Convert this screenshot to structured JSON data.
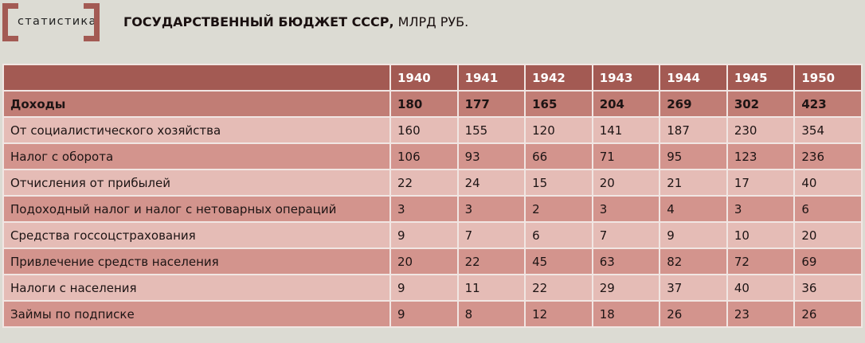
{
  "header": {
    "logo_text": "статистика",
    "title_bold": "ГОСУДАРСТВЕННЫЙ БЮДЖЕТ СССР,",
    "title_rest": " МЛРД РУБ.",
    "accent_color": "#a35a53"
  },
  "table": {
    "columns": [
      "",
      "1940",
      "1941",
      "1942",
      "1943",
      "1944",
      "1945",
      "1950"
    ],
    "rows": [
      {
        "label": "Доходы",
        "values": [
          "180",
          "177",
          "165",
          "204",
          "269",
          "302",
          "423"
        ],
        "bold": true
      },
      {
        "label": "От социалистического хозяйства",
        "values": [
          "160",
          "155",
          "120",
          "141",
          "187",
          "230",
          "354"
        ]
      },
      {
        "label": "Налог с оборота",
        "values": [
          "106",
          "93",
          "66",
          "71",
          "95",
          "123",
          "236"
        ]
      },
      {
        "label": "Отчисления от прибылей",
        "values": [
          "22",
          "24",
          "15",
          "20",
          "21",
          "17",
          "40"
        ]
      },
      {
        "label": "Подоходный налог и налог с нетоварных операций",
        "values": [
          "3",
          "3",
          "2",
          "3",
          "4",
          "3",
          "6"
        ]
      },
      {
        "label": "Средства госсоцстрахования",
        "values": [
          "9",
          "7",
          "6",
          "7",
          "9",
          "10",
          "20"
        ]
      },
      {
        "label": "Привлечение средств населения",
        "values": [
          "20",
          "22",
          "45",
          "63",
          "82",
          "72",
          "69"
        ]
      },
      {
        "label": "Налоги с населения",
        "values": [
          "9",
          "11",
          "22",
          "29",
          "37",
          "40",
          "36"
        ]
      },
      {
        "label": "Займы по подписке",
        "values": [
          "9",
          "8",
          "12",
          "18",
          "26",
          "23",
          "26"
        ]
      }
    ]
  }
}
